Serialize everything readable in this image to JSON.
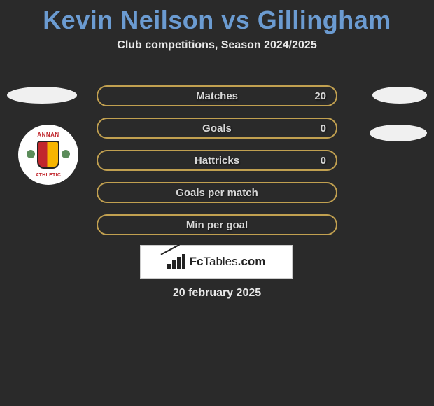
{
  "header": {
    "title": "Kevin Neilson vs Gillingham",
    "subtitle": "Club competitions, Season 2024/2025",
    "title_color": "#6b9bd1",
    "title_fontsize": 36,
    "subtitle_color": "#e8e8e8",
    "subtitle_fontsize": 16
  },
  "background_color": "#2a2a2a",
  "bars": {
    "border_color": "#c1a050",
    "border_width": 2,
    "border_radius": 15,
    "label_color": "#d8d8d8",
    "label_fontsize": 15,
    "items": [
      {
        "label": "Matches",
        "value": "20"
      },
      {
        "label": "Goals",
        "value": "0"
      },
      {
        "label": "Hattricks",
        "value": "0"
      },
      {
        "label": "Goals per match",
        "value": ""
      },
      {
        "label": "Min per goal",
        "value": ""
      }
    ]
  },
  "badge": {
    "text_top": "ANNAN",
    "text_bottom": "ATHLETIC",
    "shield_left_color": "#c1272d",
    "shield_right_color": "#f7b500",
    "text_color": "#c1272d",
    "thistle_color": "#5b8c5a"
  },
  "ovals": {
    "color": "#f0f0f0"
  },
  "logo": {
    "brand_bold": "Fc",
    "brand_light": "Tables",
    "brand_suffix": ".com",
    "box_bg": "#ffffff",
    "text_color": "#222222"
  },
  "date": {
    "text": "20 february 2025",
    "color": "#e8e8e8",
    "fontsize": 16
  }
}
